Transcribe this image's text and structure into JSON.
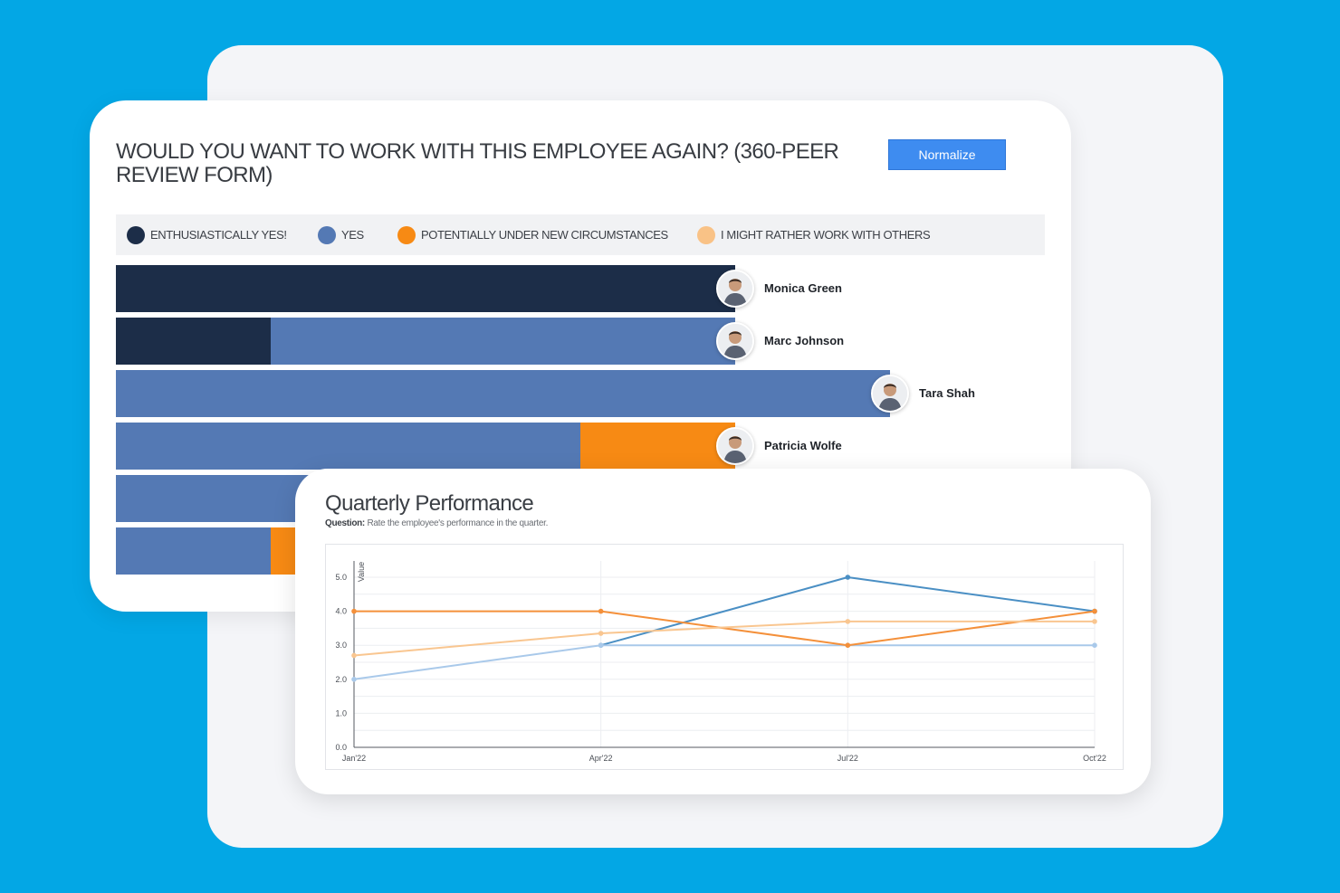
{
  "peer_review": {
    "title": "WOULD YOU WANT TO WORK WITH THIS EMPLOYEE AGAIN? (360-PEER REVIEW FORM)",
    "normalize_label": "Normalize",
    "legend": [
      {
        "label": "ENTHUSIASTICALLY YES!",
        "color": "#1c2d48"
      },
      {
        "label": "YES",
        "color": "#5479b4"
      },
      {
        "label": "POTENTIALLY UNDER NEW CIRCUMSTANCES",
        "color": "#f78a14"
      },
      {
        "label": "I MIGHT RATHER WORK WITH OTHERS",
        "color": "#f9c286"
      }
    ],
    "people": [
      {
        "name": "Monica Green",
        "avatar_icon": "person-avatar-icon"
      },
      {
        "name": "Marc Johnson",
        "avatar_icon": "person-avatar-icon"
      },
      {
        "name": "Tara Shah",
        "avatar_icon": "person-avatar-icon"
      },
      {
        "name": "Patricia Wolfe",
        "avatar_icon": "person-avatar-icon"
      }
    ]
  },
  "performance": {
    "title": "Quarterly Performance",
    "question_label": "Question:",
    "question_text": "Rate the employee's performance in the quarter."
  },
  "chart_data": [
    {
      "type": "bar",
      "orientation": "horizontal",
      "stacked": true,
      "title": "WOULD YOU WANT TO WORK WITH THIS EMPLOYEE AGAIN? (360-PEER REVIEW FORM)",
      "categories": [
        "Monica Green",
        "Marc Johnson",
        "Tara Shah",
        "Patricia Wolfe",
        "",
        ""
      ],
      "series": [
        {
          "name": "ENTHUSIASTICALLY YES!",
          "color": "#1c2d48",
          "values": [
            4,
            1,
            0,
            0,
            0,
            0
          ]
        },
        {
          "name": "YES",
          "color": "#5479b4",
          "values": [
            0,
            3,
            5,
            3,
            4,
            1
          ]
        },
        {
          "name": "POTENTIALLY UNDER NEW CIRCUMSTANCES",
          "color": "#f78a14",
          "values": [
            0,
            0,
            0,
            1,
            0,
            1
          ]
        },
        {
          "name": "I MIGHT RATHER WORK WITH OTHERS",
          "color": "#f9c286",
          "values": [
            0,
            0,
            0,
            0,
            0,
            0
          ]
        }
      ],
      "legend_position": "top"
    },
    {
      "type": "line",
      "title": "Quarterly Performance",
      "x": [
        "Jan'22",
        "Apr'22",
        "Jul'22",
        "Oct'22"
      ],
      "ylabel": "Value",
      "xlabel": "",
      "ylim": [
        0,
        5
      ],
      "yticks": [
        "0.0",
        "1.0",
        "2.0",
        "3.0",
        "4.0",
        "5.0"
      ],
      "grid": true,
      "series": [
        {
          "color": "#4a8fc4",
          "values": [
            null,
            3.0,
            5.0,
            4.0
          ]
        },
        {
          "color": "#a9c9ea",
          "values": [
            2.0,
            3.0,
            3.0,
            3.0
          ]
        },
        {
          "color": "#f4903a",
          "values": [
            4.0,
            4.0,
            3.0,
            4.0
          ]
        },
        {
          "color": "#f9c690",
          "values": [
            2.7,
            3.35,
            3.7,
            3.7
          ]
        }
      ]
    }
  ]
}
